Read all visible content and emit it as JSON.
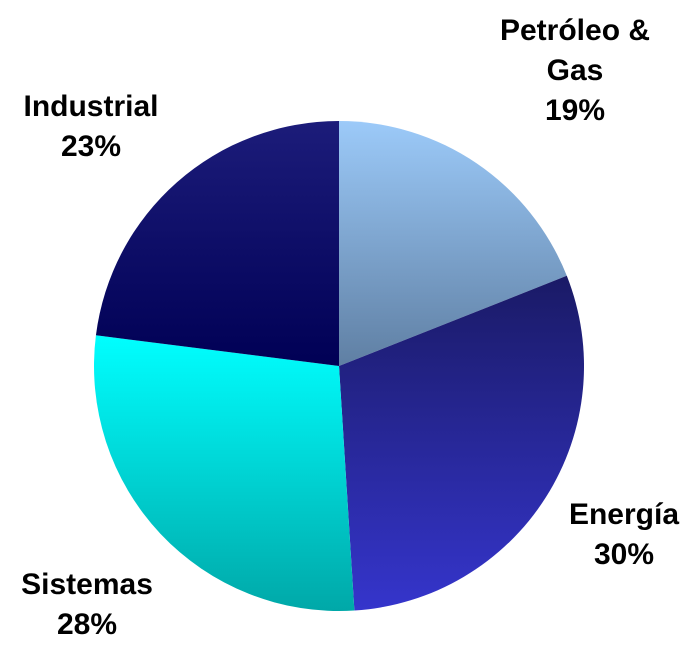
{
  "chart_data": {
    "type": "pie",
    "title": "",
    "start_angle_deg": 0,
    "direction": "clockwise",
    "legend": "none",
    "slices": [
      {
        "name_lines": [
          "Petróleo &",
          "Gas"
        ],
        "value": 19,
        "value_label": "19%",
        "colors": [
          "#5f7fa3",
          "#9ccaf9"
        ]
      },
      {
        "name_lines": [
          "Energía"
        ],
        "value": 30,
        "value_label": "30%",
        "colors": [
          "#1a1a66",
          "#3535cc"
        ]
      },
      {
        "name_lines": [
          "Sistemas"
        ],
        "value": 28,
        "value_label": "28%",
        "colors": [
          "#00a8a8",
          "#00ffff"
        ]
      },
      {
        "name_lines": [
          "Industrial"
        ],
        "value": 23,
        "value_label": "23%",
        "colors": [
          "#000055",
          "#1c1c7a"
        ]
      }
    ]
  }
}
